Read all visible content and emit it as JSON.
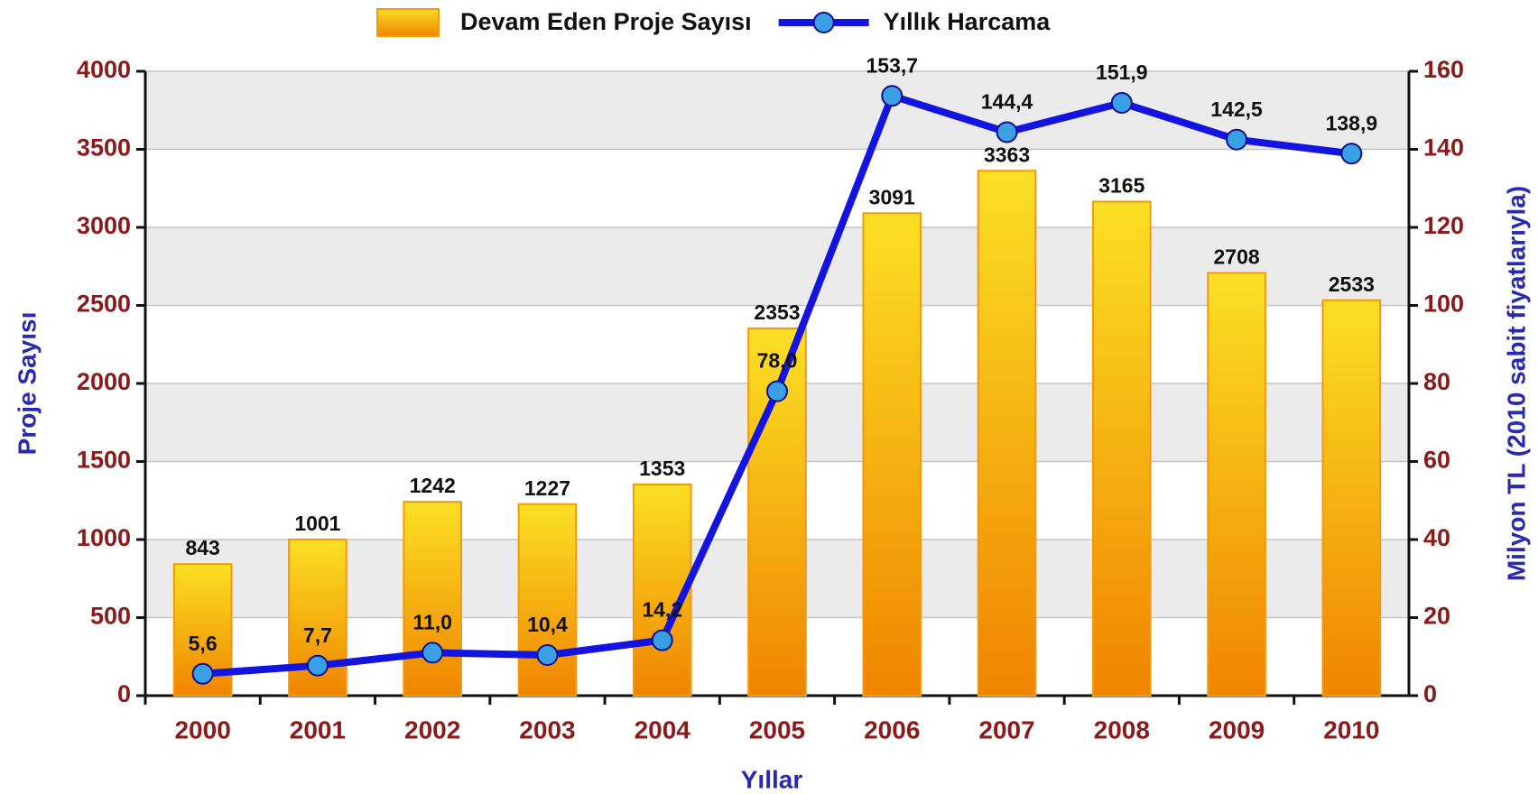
{
  "chart_data": {
    "type": "bar",
    "x_label": "Yıllar",
    "y_label": "Proje Sayısı",
    "y2_label": "Milyon TL (2010 sabit fiyatlarıyla)",
    "categories": [
      "2000",
      "2001",
      "2002",
      "2003",
      "2004",
      "2005",
      "2006",
      "2007",
      "2008",
      "2009",
      "2010"
    ],
    "series": [
      {
        "name": "Devam Eden Proje Sayısı",
        "type": "bar",
        "color": "#f39a0c",
        "values": [
          843,
          1001,
          1242,
          1227,
          1353,
          2353,
          3091,
          3363,
          3165,
          2708,
          2533
        ]
      },
      {
        "name": "Yıllık Harcama",
        "type": "line",
        "axis": "y2",
        "color": "#1414e0",
        "values": [
          5.6,
          7.7,
          11.0,
          10.4,
          14.2,
          78.0,
          153.7,
          144.4,
          151.9,
          142.5,
          138.9
        ],
        "value_labels": [
          "5,6",
          "7,7",
          "11,0",
          "10,4",
          "14,2",
          "78,0",
          "153,7",
          "144,4",
          "151,9",
          "142,5",
          "138,9"
        ]
      }
    ],
    "ylim": [
      0,
      4000
    ],
    "yticks": [
      0,
      500,
      1000,
      1500,
      2000,
      2500,
      3000,
      3500,
      4000
    ],
    "y2lim": [
      0,
      160
    ],
    "y2ticks": [
      0,
      20,
      40,
      60,
      80,
      100,
      120,
      140,
      160
    ],
    "grid": true,
    "legend": "top"
  }
}
